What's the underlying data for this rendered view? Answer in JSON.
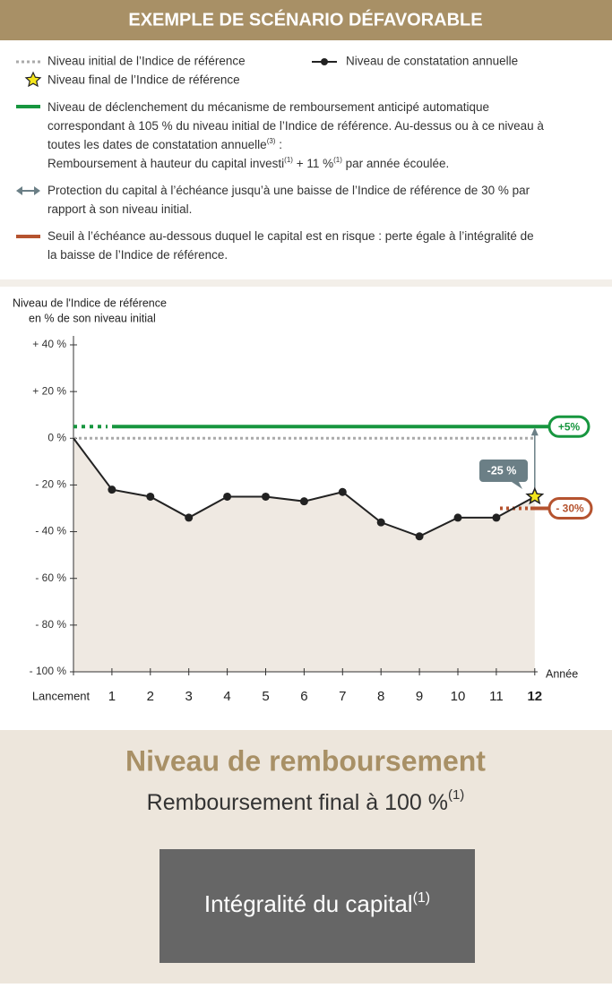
{
  "header": {
    "title": "EXEMPLE DE SCÉNARIO DÉFAVORABLE"
  },
  "legend": {
    "initial": "Niveau initial de l’Indice de référence",
    "annual": "Niveau de constatation annuelle",
    "final": "Niveau final de l’Indice de référence",
    "trigger": [
      [
        "Niveau de déclenchement du mécanisme de remboursement anticipé automatique"
      ],
      [
        "correspondant à 105 % du niveau initial de l’Indice de référence. Au-dessus ou à ce niveau à"
      ],
      [
        "toutes les dates de constatation annuelle",
        "(3)",
        " :"
      ],
      [
        "Remboursement à hauteur du capital investi",
        "(1)",
        " + 11 %",
        "(1)",
        " par année écoulée."
      ]
    ],
    "protection": [
      [
        "Protection du capital à l’échéance jusqu’à une baisse de l’Indice de référence de 30 % par"
      ],
      [
        "rapport à son niveau initial."
      ]
    ],
    "threshold": [
      [
        "Seuil à l’échéance au-dessous duquel le capital est en risque : perte égale à l’intégralité de"
      ],
      [
        "la baisse de l’Indice de référence."
      ]
    ]
  },
  "chart_data": {
    "type": "line",
    "y_label": [
      "Niveau de l'Indice de référence",
      "en % de son niveau initial"
    ],
    "x_label": "Année",
    "categories": [
      "Lancement",
      "1",
      "2",
      "3",
      "4",
      "5",
      "6",
      "7",
      "8",
      "9",
      "10",
      "11",
      "12"
    ],
    "series": [
      {
        "name": "Niveau de constatation annuelle",
        "color": "#222222",
        "values": [
          0,
          -22,
          -25,
          -34,
          -25,
          -25,
          -27,
          -23,
          -36,
          -42,
          -34,
          -34,
          -25
        ]
      }
    ],
    "ylim": [
      -100,
      40
    ],
    "yticks": [
      {
        "value": -100,
        "label": "- 100 %"
      },
      {
        "value": -80,
        "label": "- 80 %"
      },
      {
        "value": -60,
        "label": "- 60 %"
      },
      {
        "value": -40,
        "label": "- 40 %"
      },
      {
        "value": -20,
        "label": "- 20 %"
      },
      {
        "value": 0,
        "label": "0 %"
      },
      {
        "value": 20,
        "label": "+ 20 %"
      },
      {
        "value": 40,
        "label": "+ 40 %"
      }
    ],
    "initial_level": 0,
    "initial_color": "#aaaaaa",
    "trigger_level": 5,
    "trigger_label": "+5%",
    "trigger_color": "#17963f",
    "threshold_level": -30,
    "threshold_label": "- 30%",
    "threshold_color": "#b5532f",
    "final_label": "-25 %",
    "arrow_color": "#6b7f86",
    "area_color": "#efe9e2",
    "star_color": "#f5e61c"
  },
  "result": {
    "title": "Niveau de remboursement",
    "subtitle": [
      "Remboursement final à 100 %",
      "(1)"
    ],
    "box": [
      "Intégralité du capital",
      "(1)"
    ]
  }
}
